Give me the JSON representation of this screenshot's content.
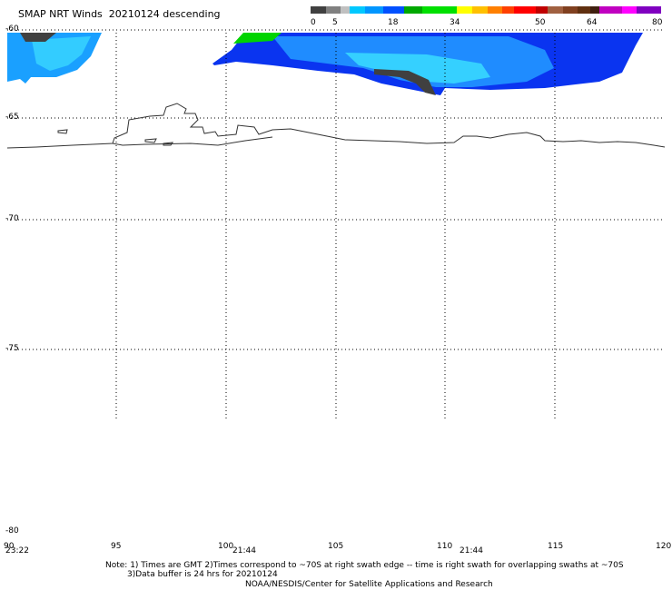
{
  "title": "SMAP NRT Winds  20210124 descending",
  "colorbar": {
    "labels": [
      "0",
      "5",
      "18",
      "34",
      "50",
      "64",
      "80"
    ],
    "segments": [
      {
        "color": "#404040",
        "weight": 1
      },
      {
        "color": "#808080",
        "weight": 1
      },
      {
        "color": "#c0c0c0",
        "weight": 0.6
      },
      {
        "color": "#00c8ff",
        "weight": 1
      },
      {
        "color": "#0096ff",
        "weight": 1.2
      },
      {
        "color": "#0050ff",
        "weight": 1.4
      },
      {
        "color": "#00a800",
        "weight": 1.2
      },
      {
        "color": "#00e000",
        "weight": 2.3
      },
      {
        "color": "#ffff00",
        "weight": 1
      },
      {
        "color": "#ffc000",
        "weight": 1
      },
      {
        "color": "#ff8000",
        "weight": 1
      },
      {
        "color": "#ff4000",
        "weight": 0.8
      },
      {
        "color": "#ff0000",
        "weight": 1.4
      },
      {
        "color": "#c00000",
        "weight": 0.8
      },
      {
        "color": "#a06040",
        "weight": 1
      },
      {
        "color": "#804020",
        "weight": 1
      },
      {
        "color": "#603010",
        "weight": 0.8
      },
      {
        "color": "#402010",
        "weight": 0.6
      },
      {
        "color": "#c000c0",
        "weight": 1.5
      },
      {
        "color": "#ff00ff",
        "weight": 1
      },
      {
        "color": "#8000c0",
        "weight": 1.6
      }
    ]
  },
  "lat_labels": [
    "-60",
    "-65",
    "-70",
    "-75",
    "-80"
  ],
  "lon_labels": [
    "90",
    "95",
    "100",
    "105",
    "110",
    "115",
    "120"
  ],
  "swath_times": [
    "23:22",
    "21:44",
    "21:44"
  ],
  "notes": {
    "line1": "Note: 1) Times are GMT 2)Times correspond to ~70S at right swath edge -- time is right swath for overlapping swaths at ~70S",
    "line2": "3)Data buffer is 24 hrs for 20210124",
    "line3": "NOAA/NESDIS/Center for Satellite Applications and Research"
  }
}
